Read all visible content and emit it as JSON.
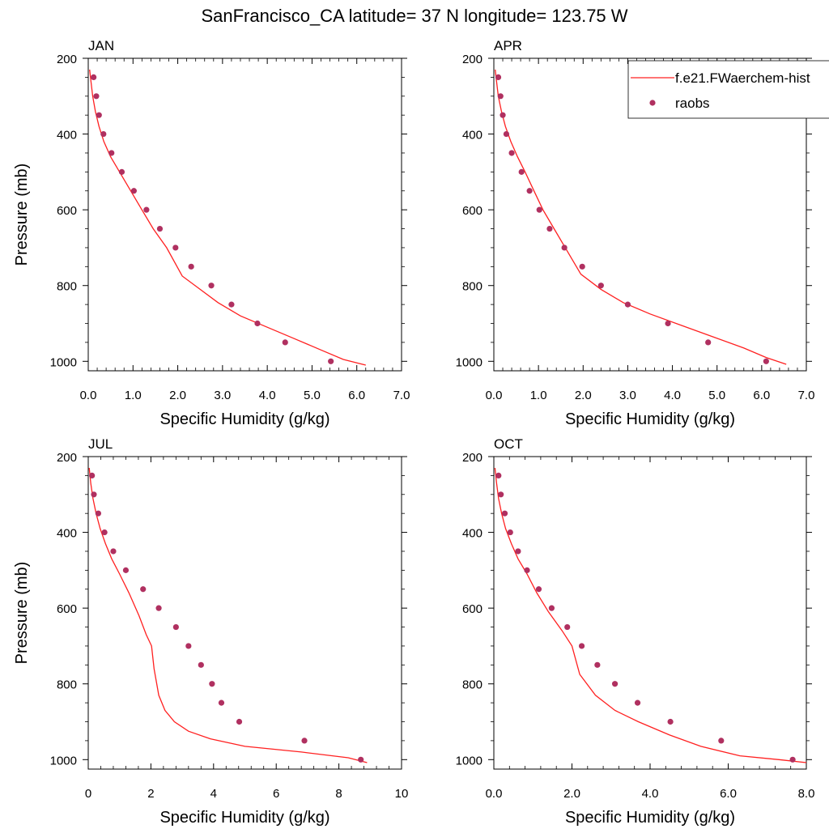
{
  "page": {
    "title": "SanFrancisco_CA  latitude= 37 N longitude= 123.75 W"
  },
  "legend": {
    "model_label": "f.e21.FWaerchem-hist",
    "obs_label": "raobs"
  },
  "colors": {
    "model_line": "#ff2020",
    "obs_marker": "#b03060",
    "axis": "#000000"
  },
  "chart_data": [
    {
      "type": "line",
      "title": "JAN",
      "xlabel": "Specific Humidity (g/kg)",
      "ylabel": "Pressure (mb)",
      "xlim": [
        0,
        7
      ],
      "ylim": [
        200,
        1025
      ],
      "y_inverted": true,
      "xticks": [
        0,
        1,
        2,
        3,
        4,
        5,
        6,
        7
      ],
      "xtick_labels": [
        "0.0",
        "1.0",
        "2.0",
        "3.0",
        "4.0",
        "5.0",
        "6.0",
        "7.0"
      ],
      "yticks": [
        200,
        400,
        600,
        800,
        1000
      ],
      "ytick_labels": [
        "200",
        "400",
        "600",
        "800",
        "1000"
      ],
      "series": [
        {
          "name": "f.e21.FWaerchem-hist",
          "kind": "line",
          "x": [
            0.03,
            0.06,
            0.1,
            0.16,
            0.24,
            0.35,
            0.5,
            0.7,
            0.95,
            1.2,
            1.45,
            1.75,
            2.1,
            2.5,
            2.9,
            3.4,
            4.0,
            4.6,
            5.2,
            5.7,
            6.2
          ],
          "y": [
            230,
            260,
            300,
            340,
            380,
            420,
            460,
            500,
            550,
            600,
            650,
            700,
            775,
            810,
            845,
            880,
            910,
            940,
            970,
            995,
            1010
          ]
        },
        {
          "name": "raobs",
          "kind": "scatter",
          "x": [
            0.12,
            0.18,
            0.24,
            0.34,
            0.52,
            0.75,
            1.02,
            1.3,
            1.6,
            1.95,
            2.3,
            2.75,
            3.2,
            3.78,
            4.4,
            5.42
          ],
          "y": [
            250,
            300,
            350,
            400,
            450,
            500,
            550,
            600,
            650,
            700,
            750,
            800,
            850,
            900,
            950,
            1000
          ]
        }
      ]
    },
    {
      "type": "line",
      "title": "APR",
      "xlabel": "Specific Humidity (g/kg)",
      "ylabel": "",
      "xlim": [
        0,
        7
      ],
      "ylim": [
        200,
        1025
      ],
      "y_inverted": true,
      "xticks": [
        0,
        1,
        2,
        3,
        4,
        5,
        6,
        7
      ],
      "xtick_labels": [
        "0.0",
        "1.0",
        "2.0",
        "3.0",
        "4.0",
        "5.0",
        "6.0",
        "7.0"
      ],
      "yticks": [
        200,
        400,
        600,
        800,
        1000
      ],
      "ytick_labels": [
        "200",
        "400",
        "600",
        "800",
        "1000"
      ],
      "series": [
        {
          "name": "f.e21.FWaerchem-hist",
          "kind": "line",
          "x": [
            0.03,
            0.06,
            0.1,
            0.17,
            0.26,
            0.38,
            0.53,
            0.7,
            0.9,
            1.1,
            1.35,
            1.6,
            1.95,
            2.4,
            2.9,
            3.5,
            4.2,
            4.9,
            5.6,
            6.1,
            6.55
          ],
          "y": [
            230,
            260,
            300,
            340,
            380,
            420,
            460,
            500,
            550,
            600,
            650,
            700,
            770,
            810,
            845,
            875,
            905,
            935,
            965,
            990,
            1008
          ]
        },
        {
          "name": "raobs",
          "kind": "scatter",
          "x": [
            0.1,
            0.15,
            0.2,
            0.28,
            0.4,
            0.62,
            0.8,
            1.02,
            1.25,
            1.58,
            1.98,
            2.4,
            3.0,
            3.9,
            4.8,
            6.1
          ],
          "y": [
            250,
            300,
            350,
            400,
            450,
            500,
            550,
            600,
            650,
            700,
            750,
            800,
            850,
            900,
            950,
            1000
          ]
        }
      ]
    },
    {
      "type": "line",
      "title": "JUL",
      "xlabel": "Specific Humidity (g/kg)",
      "ylabel": "Pressure (mb)",
      "xlim": [
        0,
        10
      ],
      "ylim": [
        200,
        1025
      ],
      "y_inverted": true,
      "xticks": [
        0,
        2,
        4,
        6,
        8,
        10
      ],
      "xtick_labels": [
        "0",
        "2",
        "4",
        "6",
        "8",
        "10"
      ],
      "yticks": [
        200,
        400,
        600,
        800,
        1000
      ],
      "ytick_labels": [
        "200",
        "400",
        "600",
        "800",
        "1000"
      ],
      "series": [
        {
          "name": "f.e21.FWaerchem-hist",
          "kind": "line",
          "x": [
            0.03,
            0.08,
            0.15,
            0.25,
            0.38,
            0.55,
            0.75,
            1.0,
            1.3,
            1.62,
            1.85,
            2.02,
            2.1,
            2.25,
            2.45,
            2.75,
            3.2,
            3.9,
            5.0,
            6.8,
            8.3,
            8.9
          ],
          "y": [
            230,
            270,
            310,
            350,
            390,
            430,
            470,
            510,
            560,
            620,
            670,
            700,
            760,
            830,
            870,
            900,
            925,
            945,
            965,
            980,
            995,
            1008
          ]
        },
        {
          "name": "raobs",
          "kind": "scatter",
          "x": [
            0.12,
            0.18,
            0.32,
            0.52,
            0.8,
            1.2,
            1.75,
            2.25,
            2.8,
            3.2,
            3.6,
            3.95,
            4.25,
            4.82,
            6.9,
            8.7
          ],
          "y": [
            250,
            300,
            350,
            400,
            450,
            500,
            550,
            600,
            650,
            700,
            750,
            800,
            850,
            900,
            950,
            1000
          ]
        }
      ]
    },
    {
      "type": "line",
      "title": "OCT",
      "xlabel": "Specific Humidity (g/kg)",
      "ylabel": "",
      "xlim": [
        0,
        8
      ],
      "ylim": [
        200,
        1025
      ],
      "y_inverted": true,
      "xticks": [
        0,
        2,
        4,
        6,
        8
      ],
      "xtick_labels": [
        "0.0",
        "2.0",
        "4.0",
        "6.0",
        "8.0"
      ],
      "yticks": [
        200,
        400,
        600,
        800,
        1000
      ],
      "ytick_labels": [
        "200",
        "400",
        "600",
        "800",
        "1000"
      ],
      "series": [
        {
          "name": "f.e21.FWaerchem-hist",
          "kind": "line",
          "x": [
            0.03,
            0.07,
            0.12,
            0.2,
            0.3,
            0.45,
            0.62,
            0.85,
            1.1,
            1.4,
            1.75,
            2.0,
            2.2,
            2.6,
            3.1,
            3.7,
            4.5,
            5.3,
            6.3,
            7.3,
            8.0
          ],
          "y": [
            230,
            270,
            310,
            350,
            390,
            430,
            470,
            510,
            560,
            610,
            660,
            700,
            775,
            830,
            870,
            900,
            935,
            965,
            990,
            1000,
            1008
          ]
        },
        {
          "name": "raobs",
          "kind": "scatter",
          "x": [
            0.12,
            0.18,
            0.28,
            0.42,
            0.62,
            0.85,
            1.15,
            1.48,
            1.88,
            2.25,
            2.65,
            3.1,
            3.68,
            4.52,
            5.82,
            7.65
          ],
          "y": [
            250,
            300,
            350,
            400,
            450,
            500,
            550,
            600,
            650,
            700,
            750,
            800,
            850,
            900,
            950,
            1000
          ]
        }
      ]
    }
  ]
}
